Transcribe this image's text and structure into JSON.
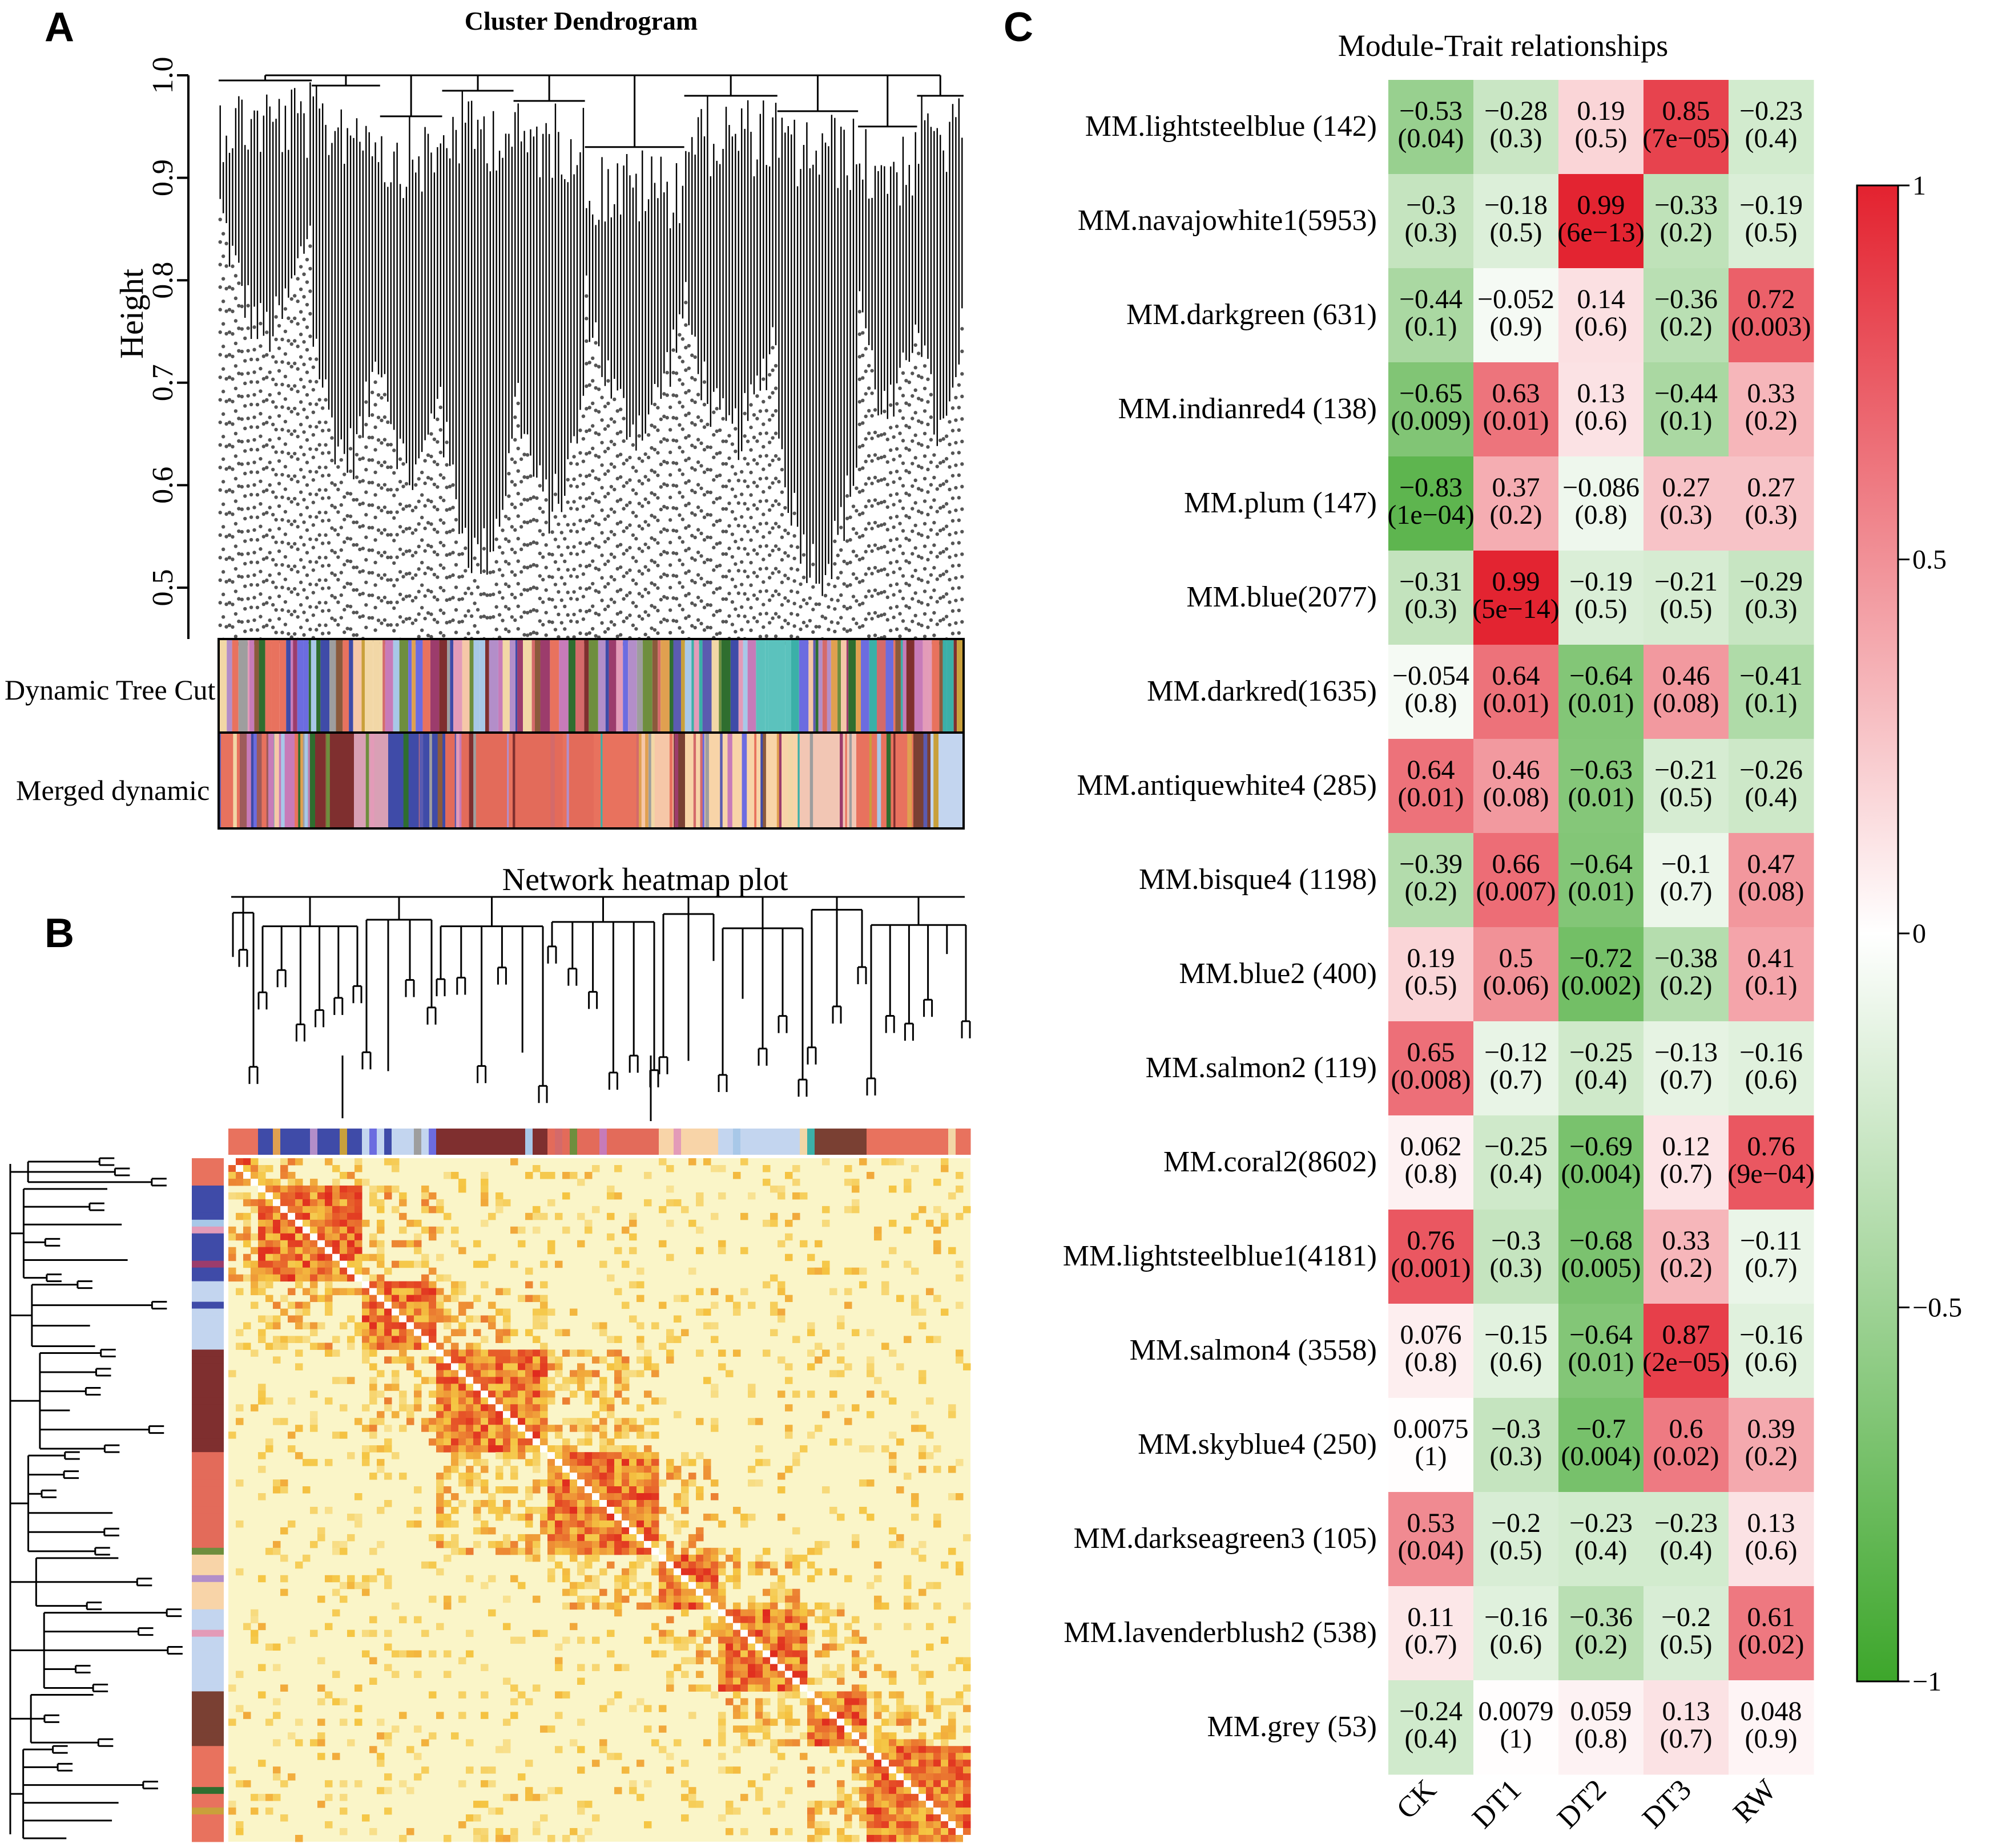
{
  "panels": {
    "a": "A",
    "b": "B",
    "c": "C"
  },
  "panel_a": {
    "title": "Cluster Dendrogram",
    "ylabel": "Height",
    "yticks": [
      "1.0",
      "0.9",
      "0.8",
      "0.7",
      "0.6",
      "0.5"
    ],
    "row1_label": "Dynamic Tree Cut",
    "row2_label": "Merged dynamic"
  },
  "panel_b": {
    "title": "Network heatmap plot"
  },
  "chart_data": [
    {
      "type": "dendrogram",
      "title": "Cluster Dendrogram",
      "ylabel": "Height",
      "ylim": [
        0.45,
        1.0
      ],
      "yticks": [
        1.0,
        0.9,
        0.8,
        0.7,
        0.6,
        0.5
      ],
      "color_rows": [
        "Dynamic Tree Cut",
        "Merged dynamic"
      ]
    },
    {
      "type": "heatmap",
      "title": "Network heatmap plot",
      "colors": {
        "low": "#FAF5C8",
        "mid": "#F5C542",
        "high": "#E02A1E",
        "diagonal": "#FFFFFF"
      }
    },
    {
      "type": "heatmap",
      "title": "Module-Trait  relationships",
      "xlabels": [
        "CK",
        "DT1",
        "DT2",
        "DT3",
        "RW"
      ],
      "ylabels": [
        "MM.lightsteelblue (142)",
        "MM.navajowhite1(5953)",
        "MM.darkgreen (631)",
        "MM.indianred4 (138)",
        "MM.plum  (147)",
        "MM.blue(2077)",
        "MM.darkred(1635)",
        "MM.antiquewhite4  (285)",
        "MM.bisque4 (1198)",
        "MM.blue2 (400)",
        "MM.salmon2 (119)",
        "MM.coral2(8602)",
        "MM.lightsteelblue1(4181)",
        "MM.salmon4 (3558)",
        "MM.skyblue4 (250)",
        "MM.darkseagreen3 (105)",
        "MM.lavenderblush2 (538)",
        "MM.grey  (53)"
      ],
      "values": [
        [
          -0.53,
          -0.28,
          0.19,
          0.85,
          -0.23
        ],
        [
          -0.3,
          -0.18,
          0.99,
          -0.33,
          -0.19
        ],
        [
          -0.44,
          -0.052,
          0.14,
          -0.36,
          0.72
        ],
        [
          -0.65,
          0.63,
          0.13,
          -0.44,
          0.33
        ],
        [
          -0.83,
          0.37,
          -0.086,
          0.27,
          0.27
        ],
        [
          -0.31,
          0.99,
          -0.19,
          -0.21,
          -0.29
        ],
        [
          -0.054,
          0.64,
          -0.64,
          0.46,
          -0.41
        ],
        [
          0.64,
          0.46,
          -0.63,
          -0.21,
          -0.26
        ],
        [
          -0.39,
          0.66,
          -0.64,
          -0.1,
          0.47
        ],
        [
          0.19,
          0.5,
          -0.72,
          -0.38,
          0.41
        ],
        [
          0.65,
          -0.12,
          -0.25,
          -0.13,
          -0.16
        ],
        [
          0.062,
          -0.25,
          -0.69,
          0.12,
          0.76
        ],
        [
          0.76,
          -0.3,
          -0.68,
          0.33,
          -0.11
        ],
        [
          0.076,
          -0.15,
          -0.64,
          0.87,
          -0.16
        ],
        [
          0.0075,
          -0.3,
          -0.7,
          0.6,
          0.39
        ],
        [
          0.53,
          -0.2,
          -0.23,
          -0.23,
          0.13
        ],
        [
          0.11,
          -0.16,
          -0.36,
          -0.2,
          0.61
        ],
        [
          -0.24,
          0.0079,
          0.059,
          0.13,
          0.048
        ]
      ],
      "cell_text": [
        [
          "−0.53",
          "−0.28",
          "0.19",
          "0.85",
          "−0.23"
        ],
        [
          "−0.3",
          "−0.18",
          "0.99",
          "−0.33",
          "−0.19"
        ],
        [
          "−0.44",
          "−0.052",
          "0.14",
          "−0.36",
          "0.72"
        ],
        [
          "−0.65",
          "0.63",
          "0.13",
          "−0.44",
          "0.33"
        ],
        [
          "−0.83",
          "0.37",
          "−0.086",
          "0.27",
          "0.27"
        ],
        [
          "−0.31",
          "0.99",
          "−0.19",
          "−0.21",
          "−0.29"
        ],
        [
          "−0.054",
          "0.64",
          "−0.64",
          "0.46",
          "−0.41"
        ],
        [
          "0.64",
          "0.46",
          "−0.63",
          "−0.21",
          "−0.26"
        ],
        [
          "−0.39",
          "0.66",
          "−0.64",
          "−0.1",
          "0.47"
        ],
        [
          "0.19",
          "0.5",
          "−0.72",
          "−0.38",
          "0.41"
        ],
        [
          "0.65",
          "−0.12",
          "−0.25",
          "−0.13",
          "−0.16"
        ],
        [
          "0.062",
          "−0.25",
          "−0.69",
          "0.12",
          "0.76"
        ],
        [
          "0.76",
          "−0.3",
          "−0.68",
          "0.33",
          "−0.11"
        ],
        [
          "0.076",
          "−0.15",
          "−0.64",
          "0.87",
          "−0.16"
        ],
        [
          "0.0075",
          "−0.3",
          "−0.7",
          "0.6",
          "0.39"
        ],
        [
          "0.53",
          "−0.2",
          "−0.23",
          "−0.23",
          "0.13"
        ],
        [
          "0.11",
          "−0.16",
          "−0.36",
          "−0.2",
          "0.61"
        ],
        [
          "−0.24",
          "0.0079",
          "0.059",
          "0.13",
          "0.048"
        ]
      ],
      "pvalues": [
        [
          "(0.04)",
          "(0.3)",
          "(0.5)",
          "(7e−05)",
          "(0.4)"
        ],
        [
          "(0.3)",
          "(0.5)",
          "(6e−13)",
          "(0.2)",
          "(0.5)"
        ],
        [
          "(0.1)",
          "(0.9)",
          "(0.6)",
          "(0.2)",
          "(0.003)"
        ],
        [
          "(0.009)",
          "(0.01)",
          "(0.6)",
          "(0.1)",
          "(0.2)"
        ],
        [
          "(1e−04)",
          "(0.2)",
          "(0.8)",
          "(0.3)",
          "(0.3)"
        ],
        [
          "(0.3)",
          "(5e−14)",
          "(0.5)",
          "(0.5)",
          "(0.3)"
        ],
        [
          "(0.8)",
          "(0.01)",
          "(0.01)",
          "(0.08)",
          "(0.1)"
        ],
        [
          "(0.01)",
          "(0.08)",
          "(0.01)",
          "(0.5)",
          "(0.4)"
        ],
        [
          "(0.2)",
          "(0.007)",
          "(0.01)",
          "(0.7)",
          "(0.08)"
        ],
        [
          "(0.5)",
          "(0.06)",
          "(0.002)",
          "(0.2)",
          "(0.1)"
        ],
        [
          "(0.008)",
          "(0.7)",
          "(0.4)",
          "(0.7)",
          "(0.6)"
        ],
        [
          "(0.8)",
          "(0.4)",
          "(0.004)",
          "(0.7)",
          "(9e−04)"
        ],
        [
          "(0.001)",
          "(0.3)",
          "(0.005)",
          "(0.2)",
          "(0.7)"
        ],
        [
          "(0.8)",
          "(0.6)",
          "(0.01)",
          "(2e−05)",
          "(0.6)"
        ],
        [
          "(1)",
          "(0.3)",
          "(0.004)",
          "(0.02)",
          "(0.2)"
        ],
        [
          "(0.04)",
          "(0.5)",
          "(0.4)",
          "(0.4)",
          "(0.6)"
        ],
        [
          "(0.7)",
          "(0.6)",
          "(0.2)",
          "(0.5)",
          "(0.02)"
        ],
        [
          "(0.4)",
          "(1)",
          "(0.8)",
          "(0.7)",
          "(0.9)"
        ]
      ],
      "colorbar": {
        "range": [
          -1,
          1
        ],
        "ticks": [
          "1",
          "0.5",
          "0",
          "−0.5",
          "−1"
        ],
        "colors": {
          "negative": "#3DA62B",
          "zero": "#FFFFFF",
          "positive": "#E3222F"
        }
      }
    }
  ]
}
